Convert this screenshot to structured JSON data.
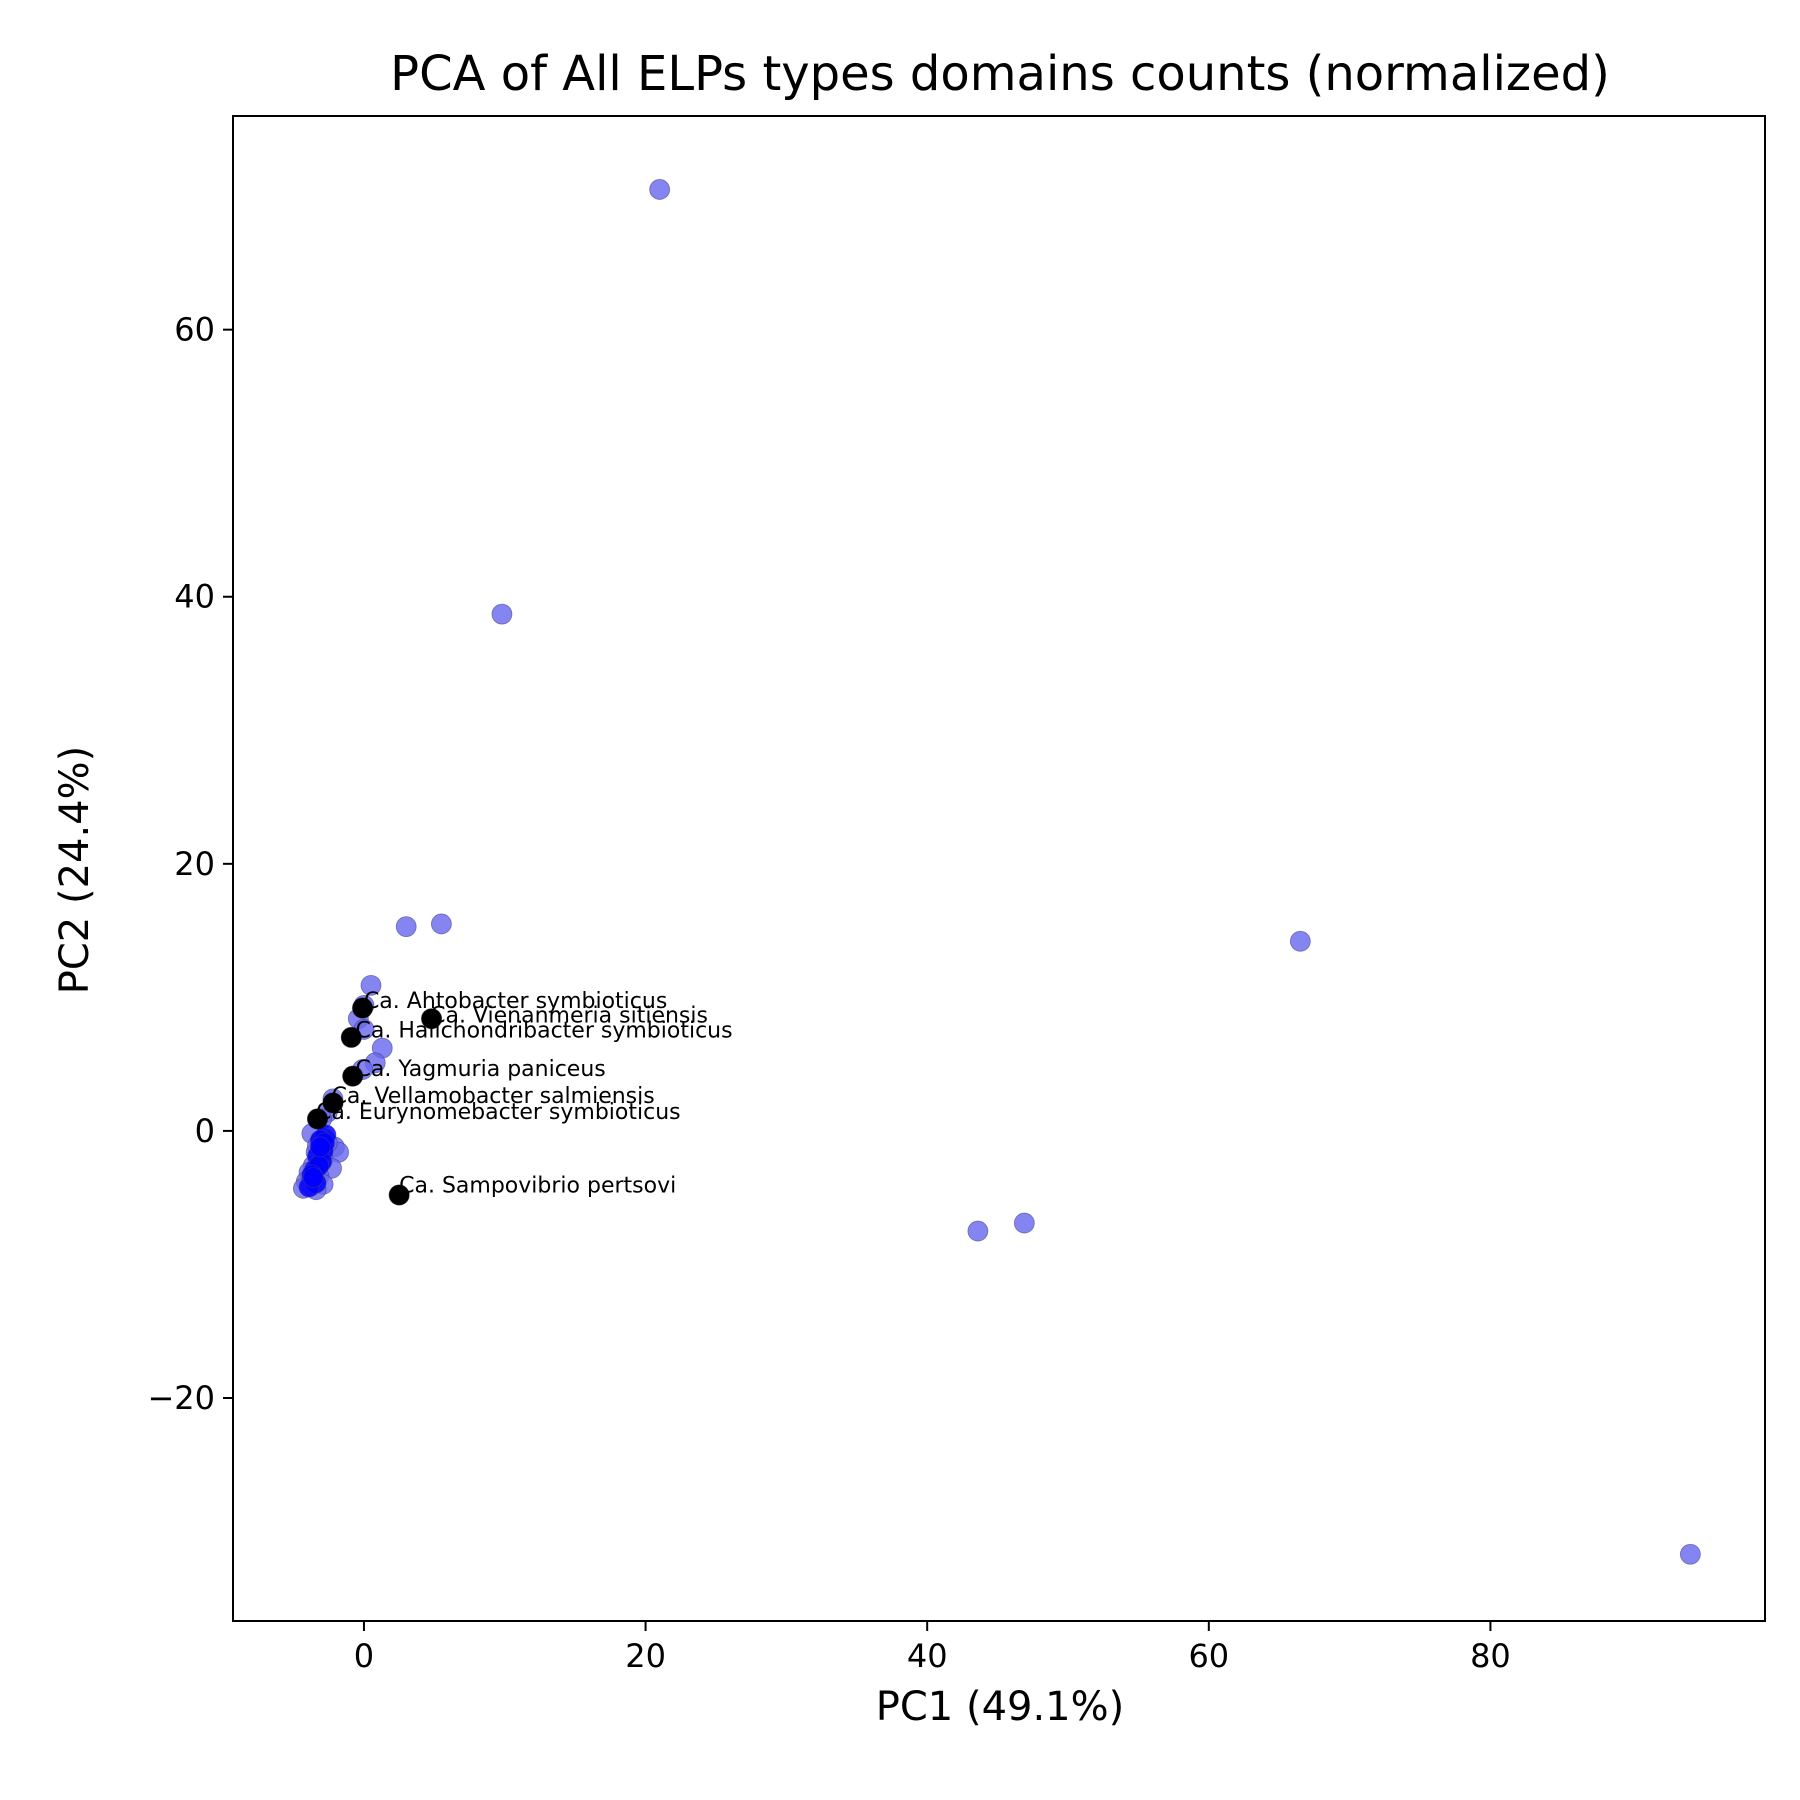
{
  "chart_data": {
    "type": "scatter",
    "title": "PCA of All ELPs types domains counts (normalized)",
    "xlabel": "PC1 (49.1%)",
    "ylabel": "PC2 (24.4%)",
    "xlim": [
      -9.3,
      99.5
    ],
    "ylim": [
      -36.7,
      76.0
    ],
    "xticks": [
      0,
      20,
      40,
      60,
      80
    ],
    "yticks": [
      -20,
      0,
      20,
      40,
      60
    ],
    "xtick_labels": [
      "0",
      "20",
      "40",
      "60",
      "80"
    ],
    "ytick_labels": [
      "−20",
      "0",
      "20",
      "40",
      "60"
    ],
    "grid": false,
    "legend": "none",
    "series": [
      {
        "color": "#6666ee",
        "points": [
          [
            21.0,
            70.5
          ],
          [
            9.8,
            38.7
          ],
          [
            3.0,
            15.3
          ],
          [
            5.5,
            15.5
          ],
          [
            66.5,
            14.2
          ],
          [
            43.6,
            -7.5
          ],
          [
            46.9,
            -6.9
          ],
          [
            94.2,
            -31.7
          ],
          [
            0.5,
            10.9
          ],
          [
            0.0,
            9.4
          ],
          [
            -0.4,
            8.4
          ],
          [
            0.0,
            7.6
          ],
          [
            1.3,
            6.2
          ],
          [
            0.8,
            5.1
          ],
          [
            -0.1,
            4.6
          ],
          [
            -2.2,
            2.4
          ],
          [
            -2.6,
            1.4
          ],
          [
            -3.0,
            0.9
          ],
          [
            -3.7,
            -0.2
          ],
          [
            -2.8,
            -0.6
          ],
          [
            -3.1,
            -0.9
          ],
          [
            -2.1,
            -1.2
          ],
          [
            -1.8,
            -1.6
          ],
          [
            -3.4,
            -1.6
          ],
          [
            -2.9,
            -2.1
          ],
          [
            -3.6,
            -2.6
          ],
          [
            -2.3,
            -2.8
          ],
          [
            -3.9,
            -3.1
          ],
          [
            -3.2,
            -3.4
          ],
          [
            -3.5,
            -3.6
          ],
          [
            -4.1,
            -3.8
          ],
          [
            -2.9,
            -4.0
          ],
          [
            -3.7,
            -4.1
          ],
          [
            -4.3,
            -4.3
          ],
          [
            -3.4,
            -4.4
          ],
          [
            -2.6,
            -0.9
          ],
          [
            -3.3,
            -1.1
          ],
          [
            -3.0,
            -1.3
          ]
        ]
      },
      {
        "color": "#0000ff",
        "points": [
          [
            -2.7,
            -0.3
          ],
          [
            -3.1,
            -0.7
          ],
          [
            -2.9,
            -1.5
          ],
          [
            -3.3,
            -1.9
          ],
          [
            -3.0,
            -2.3
          ],
          [
            -3.5,
            -2.9
          ],
          [
            -3.2,
            -2.6
          ],
          [
            -3.7,
            -3.3
          ],
          [
            -3.4,
            -3.9
          ],
          [
            -3.9,
            -4.2
          ],
          [
            -2.8,
            -0.9
          ],
          [
            -3.6,
            -3.5
          ],
          [
            -3.1,
            -1.2
          ]
        ]
      },
      {
        "color": "#000000",
        "points": [
          [
            -0.1,
            9.2
          ],
          [
            4.8,
            8.4
          ],
          [
            -0.9,
            7.0
          ],
          [
            -0.8,
            4.1
          ],
          [
            -2.2,
            2.1
          ],
          [
            -3.3,
            0.9
          ],
          [
            2.5,
            -4.8
          ]
        ]
      }
    ],
    "annotations": [
      {
        "text": "Ca. Ahtobacter symbioticus",
        "x": 0.0,
        "y": 9.2
      },
      {
        "text": "Ca. Vienanmeria sitiensis",
        "x": 4.7,
        "y": 8.1
      },
      {
        "text": "Ca. Halichondribacter symbioticus",
        "x": -0.6,
        "y": 7.0
      },
      {
        "text": "Ca. Yagmuria paniceus",
        "x": -0.6,
        "y": 4.1
      },
      {
        "text": "Ca. Vellamobacter salmiensis",
        "x": -2.3,
        "y": 2.1
      },
      {
        "text": "Ca. Eurynomebacter symbioticus",
        "x": -3.4,
        "y": 0.9
      },
      {
        "text": "Ca. Sampovibrio pertsovi",
        "x": 2.5,
        "y": -4.6
      }
    ]
  }
}
